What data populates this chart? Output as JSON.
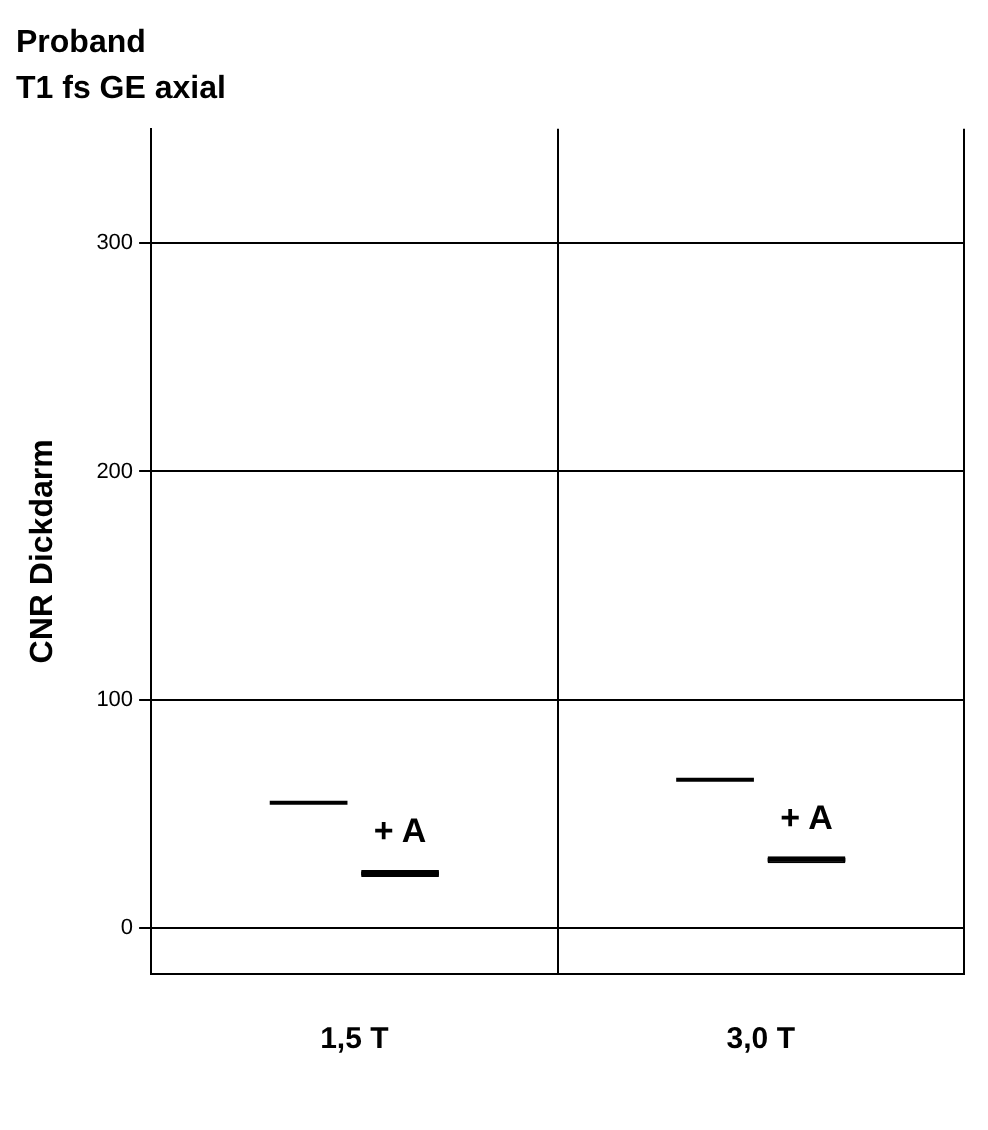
{
  "chart_data": {
    "type": "box",
    "title": "Proband",
    "subtitle": "T1 fs GE axial",
    "ylabel": "CNR Dickdarm",
    "categories": [
      "1,5 T",
      "3,0 T"
    ],
    "series": [
      {
        "color": "#000000",
        "boxes": [
          {
            "low": 55,
            "q1": 55,
            "median": 55,
            "q3": 55,
            "high": 55
          },
          {
            "low": 65,
            "q1": 65,
            "median": 65,
            "q3": 65,
            "high": 65
          }
        ]
      },
      {
        "name": "+ A",
        "color": "#c0c0c0",
        "boxes": [
          {
            "low": 22.5,
            "q1": 22.5,
            "median": 24,
            "q3": 25.5,
            "high": 25.5
          },
          {
            "low": 28.5,
            "q1": 28.5,
            "median": 30,
            "q3": 31.5,
            "high": 31.5
          }
        ]
      }
    ],
    "ylim": [
      -20,
      350
    ],
    "yticks": [
      0,
      100,
      200,
      300
    ],
    "grid": true,
    "legend": false
  }
}
